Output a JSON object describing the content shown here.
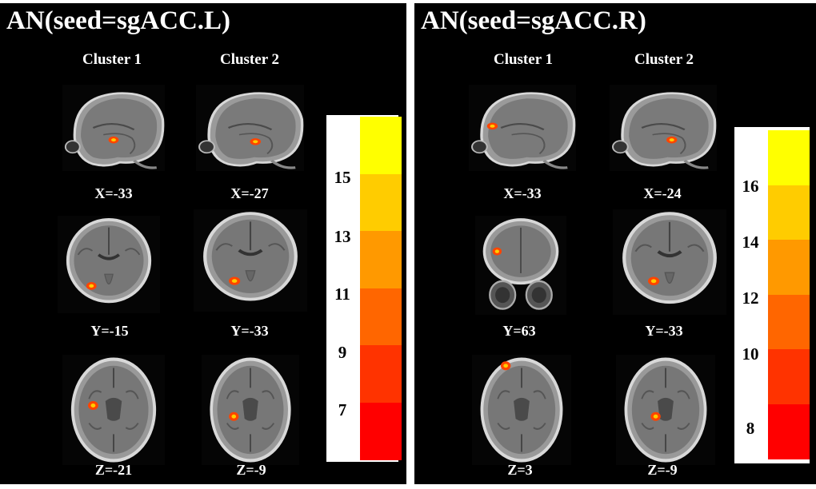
{
  "panels": [
    {
      "title": "AN(seed=sgACC.L)",
      "cluster_labels": [
        "Cluster 1",
        "Cluster 2"
      ],
      "coords": [
        "X=-33",
        "X=-27",
        "Y=-15",
        "Y=-33",
        "Z=-21",
        "Z=-9"
      ],
      "slice_views": [
        "sagittal",
        "sagittal",
        "coronal",
        "coronal",
        "axial",
        "axial"
      ],
      "colorbar_ticks": [
        "15",
        "13",
        "11",
        "9",
        "7"
      ]
    },
    {
      "title": "AN(seed=sgACC.R)",
      "cluster_labels": [
        "Cluster 1",
        "Cluster 2"
      ],
      "coords": [
        "X=-33",
        "X=-24",
        "Y=63",
        "Y=-33",
        "Z=3",
        "Z=-9"
      ],
      "slice_views": [
        "sagittal",
        "sagittal",
        "coronal",
        "coronal",
        "axial",
        "axial"
      ],
      "colorbar_ticks": [
        "16",
        "14",
        "12",
        "10",
        "8"
      ]
    }
  ],
  "colors": {
    "background": "#000000",
    "colorbar": [
      "#ffff00",
      "#ffcc00",
      "#ff9900",
      "#ff6600",
      "#ff3300",
      "#ff0000"
    ],
    "activation": "#ff4400"
  }
}
